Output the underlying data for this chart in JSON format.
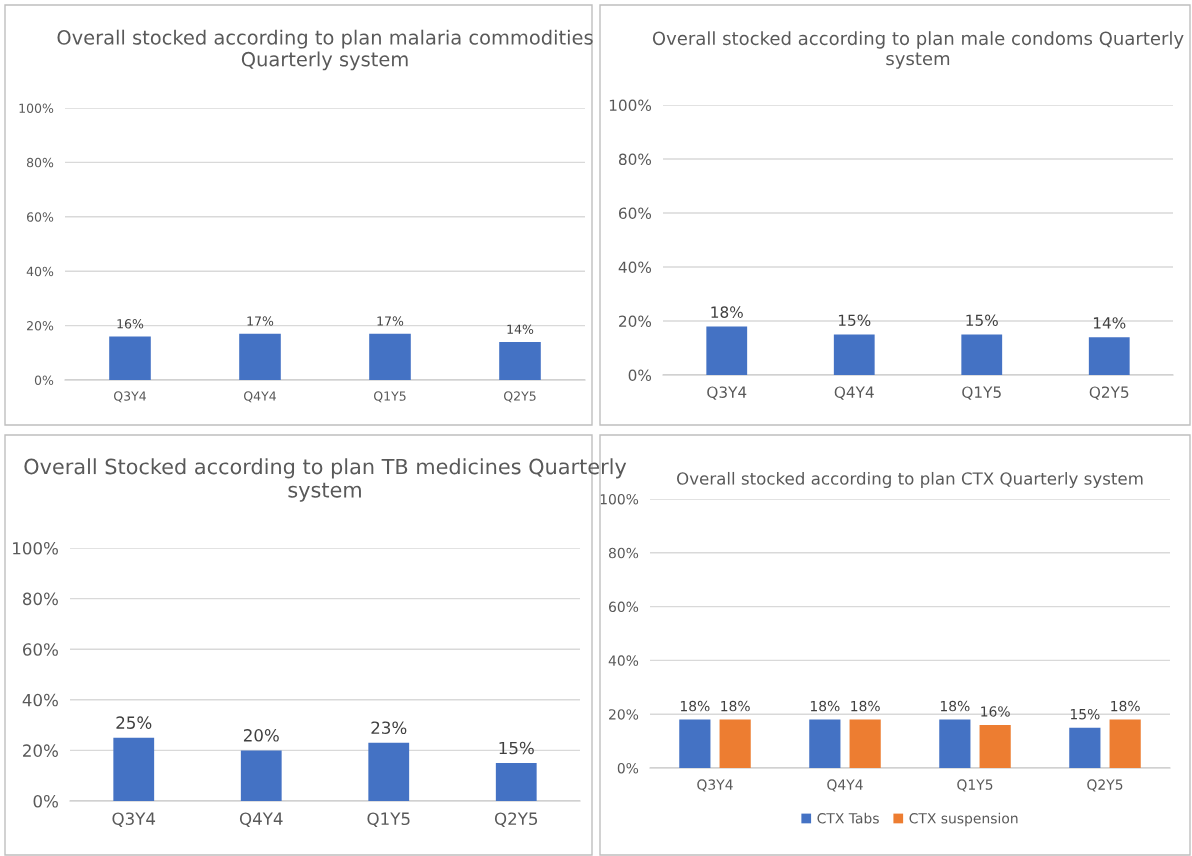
{
  "chart_data": [
    {
      "type": "bar",
      "title": "Overall stocked according to plan malaria commodities Quarterly system",
      "categories": [
        "Q3Y4",
        "Q4Y4",
        "Q1Y5",
        "Q2Y5"
      ],
      "ylim": [
        0,
        100
      ],
      "yticks": [
        {
          "value": 0,
          "label": "0%"
        },
        {
          "value": 20,
          "label": "20%"
        },
        {
          "value": 40,
          "label": "40%"
        },
        {
          "value": 60,
          "label": "60%"
        },
        {
          "value": 80,
          "label": "80%"
        },
        {
          "value": 100,
          "label": "100%"
        }
      ],
      "grid": "y",
      "legend": false,
      "series": [
        {
          "color": "#4472c4",
          "values": [
            16,
            17,
            17,
            14
          ],
          "value_labels": [
            "16%",
            "17%",
            "17%",
            "14%"
          ]
        }
      ]
    },
    {
      "type": "bar",
      "title": "Overall stocked according to plan male condoms Quarterly system",
      "categories": [
        "Q3Y4",
        "Q4Y4",
        "Q1Y5",
        "Q2Y5"
      ],
      "ylim": [
        0,
        100
      ],
      "yticks": [
        {
          "value": 0,
          "label": "0%"
        },
        {
          "value": 20,
          "label": "20%"
        },
        {
          "value": 40,
          "label": "40%"
        },
        {
          "value": 60,
          "label": "60%"
        },
        {
          "value": 80,
          "label": "80%"
        },
        {
          "value": 100,
          "label": "100%"
        }
      ],
      "grid": "y",
      "legend": false,
      "series": [
        {
          "color": "#4472c4",
          "values": [
            18,
            15,
            15,
            14
          ],
          "value_labels": [
            "18%",
            "15%",
            "15%",
            "14%"
          ]
        }
      ]
    },
    {
      "type": "bar",
      "title": "Overall Stocked according to plan TB medicines Quarterly system",
      "categories": [
        "Q3Y4",
        "Q4Y4",
        "Q1Y5",
        "Q2Y5"
      ],
      "ylim": [
        0,
        100
      ],
      "yticks": [
        {
          "value": 0,
          "label": "0%"
        },
        {
          "value": 20,
          "label": "20%"
        },
        {
          "value": 40,
          "label": "40%"
        },
        {
          "value": 60,
          "label": "60%"
        },
        {
          "value": 80,
          "label": "80%"
        },
        {
          "value": 100,
          "label": "100%"
        }
      ],
      "grid": "y",
      "legend": false,
      "series": [
        {
          "color": "#4472c4",
          "values": [
            25,
            20,
            23,
            15
          ],
          "value_labels": [
            "25%",
            "20%",
            "23%",
            "15%"
          ]
        }
      ]
    },
    {
      "type": "bar",
      "title": "Overall stocked according to plan CTX Quarterly system",
      "categories": [
        "Q3Y4",
        "Q4Y4",
        "Q1Y5",
        "Q2Y5"
      ],
      "ylim": [
        0,
        100
      ],
      "yticks": [
        {
          "value": 0,
          "label": "0%"
        },
        {
          "value": 20,
          "label": "20%"
        },
        {
          "value": 40,
          "label": "40%"
        },
        {
          "value": 60,
          "label": "60%"
        },
        {
          "value": 80,
          "label": "80%"
        },
        {
          "value": 100,
          "label": "100%"
        }
      ],
      "grid": "y",
      "legend": "bottom",
      "series": [
        {
          "name": "CTX Tabs",
          "color": "#4472c4",
          "values": [
            18,
            18,
            18,
            15
          ],
          "value_labels": [
            "18%",
            "18%",
            "18%",
            "15%"
          ]
        },
        {
          "name": "CTX suspension",
          "color": "#ed7d31",
          "values": [
            18,
            18,
            16,
            18
          ],
          "value_labels": [
            "18%",
            "18%",
            "16%",
            "18%"
          ]
        }
      ]
    }
  ]
}
